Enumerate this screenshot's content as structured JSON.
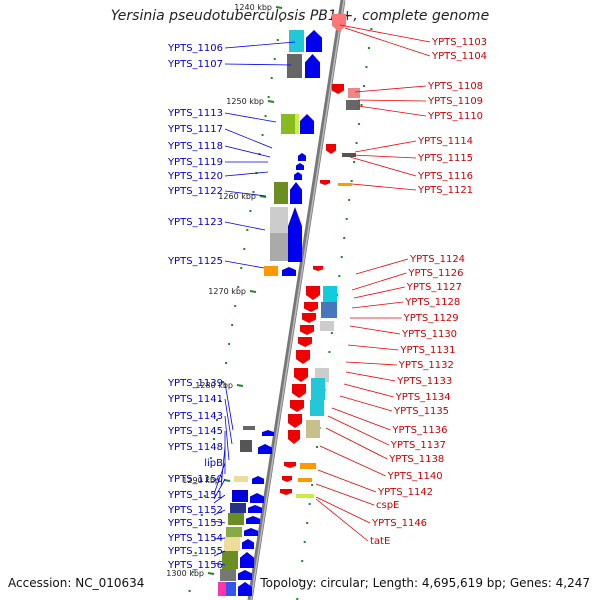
{
  "title": "Yersinia pseudotuberculosis PB1/+, complete genome",
  "footer": {
    "accession": "Accession: NC_010634",
    "summary": "Topology: circular; Length: 4,695,619 bp; Genes: 4,247"
  },
  "scale_labels": [
    "1240 kbp",
    "1250 kbp",
    "1260 kbp",
    "1270 kbp",
    "1280 kbp",
    "1290 kbp",
    "1300 kbp"
  ],
  "left_genes": [
    "YPTS_1106",
    "YPTS_1107",
    "YPTS_1113",
    "YPTS_1117",
    "YPTS_1118",
    "YPTS_1119",
    "YPTS_1120",
    "YPTS_1122",
    "YPTS_1123",
    "YPTS_1125",
    "YPTS_1139",
    "YPTS_1141",
    "YPTS_1143",
    "YPTS_1145",
    "YPTS_1148",
    "lipB",
    "YPTS_1150",
    "YPTS_1151",
    "YPTS_1152",
    "YPTS_1153",
    "YPTS_1154",
    "YPTS_1155",
    "YPTS_1156"
  ],
  "right_genes": [
    "YPTS_1103",
    "YPTS_1104",
    "YPTS_1108",
    "YPTS_1109",
    "YPTS_1110",
    "YPTS_1114",
    "YPTS_1115",
    "YPTS_1116",
    "YPTS_1121",
    "YPTS_1124",
    "YPTS_1126",
    "YPTS_1127",
    "YPTS_1128",
    "YPTS_1129",
    "YPTS_1130",
    "YPTS_1131",
    "YPTS_1132",
    "YPTS_1133",
    "YPTS_1134",
    "YPTS_1135",
    "YPTS_1136",
    "YPTS_1137",
    "YPTS_1138",
    "YPTS_1140",
    "YPTS_1142",
    "cspE",
    "YPTS_1146",
    "tatE"
  ],
  "colors": {
    "forward_strand": "#0000ee",
    "reverse_strand": "#ee0000",
    "backbone": "#888888",
    "tick": "#228822"
  }
}
